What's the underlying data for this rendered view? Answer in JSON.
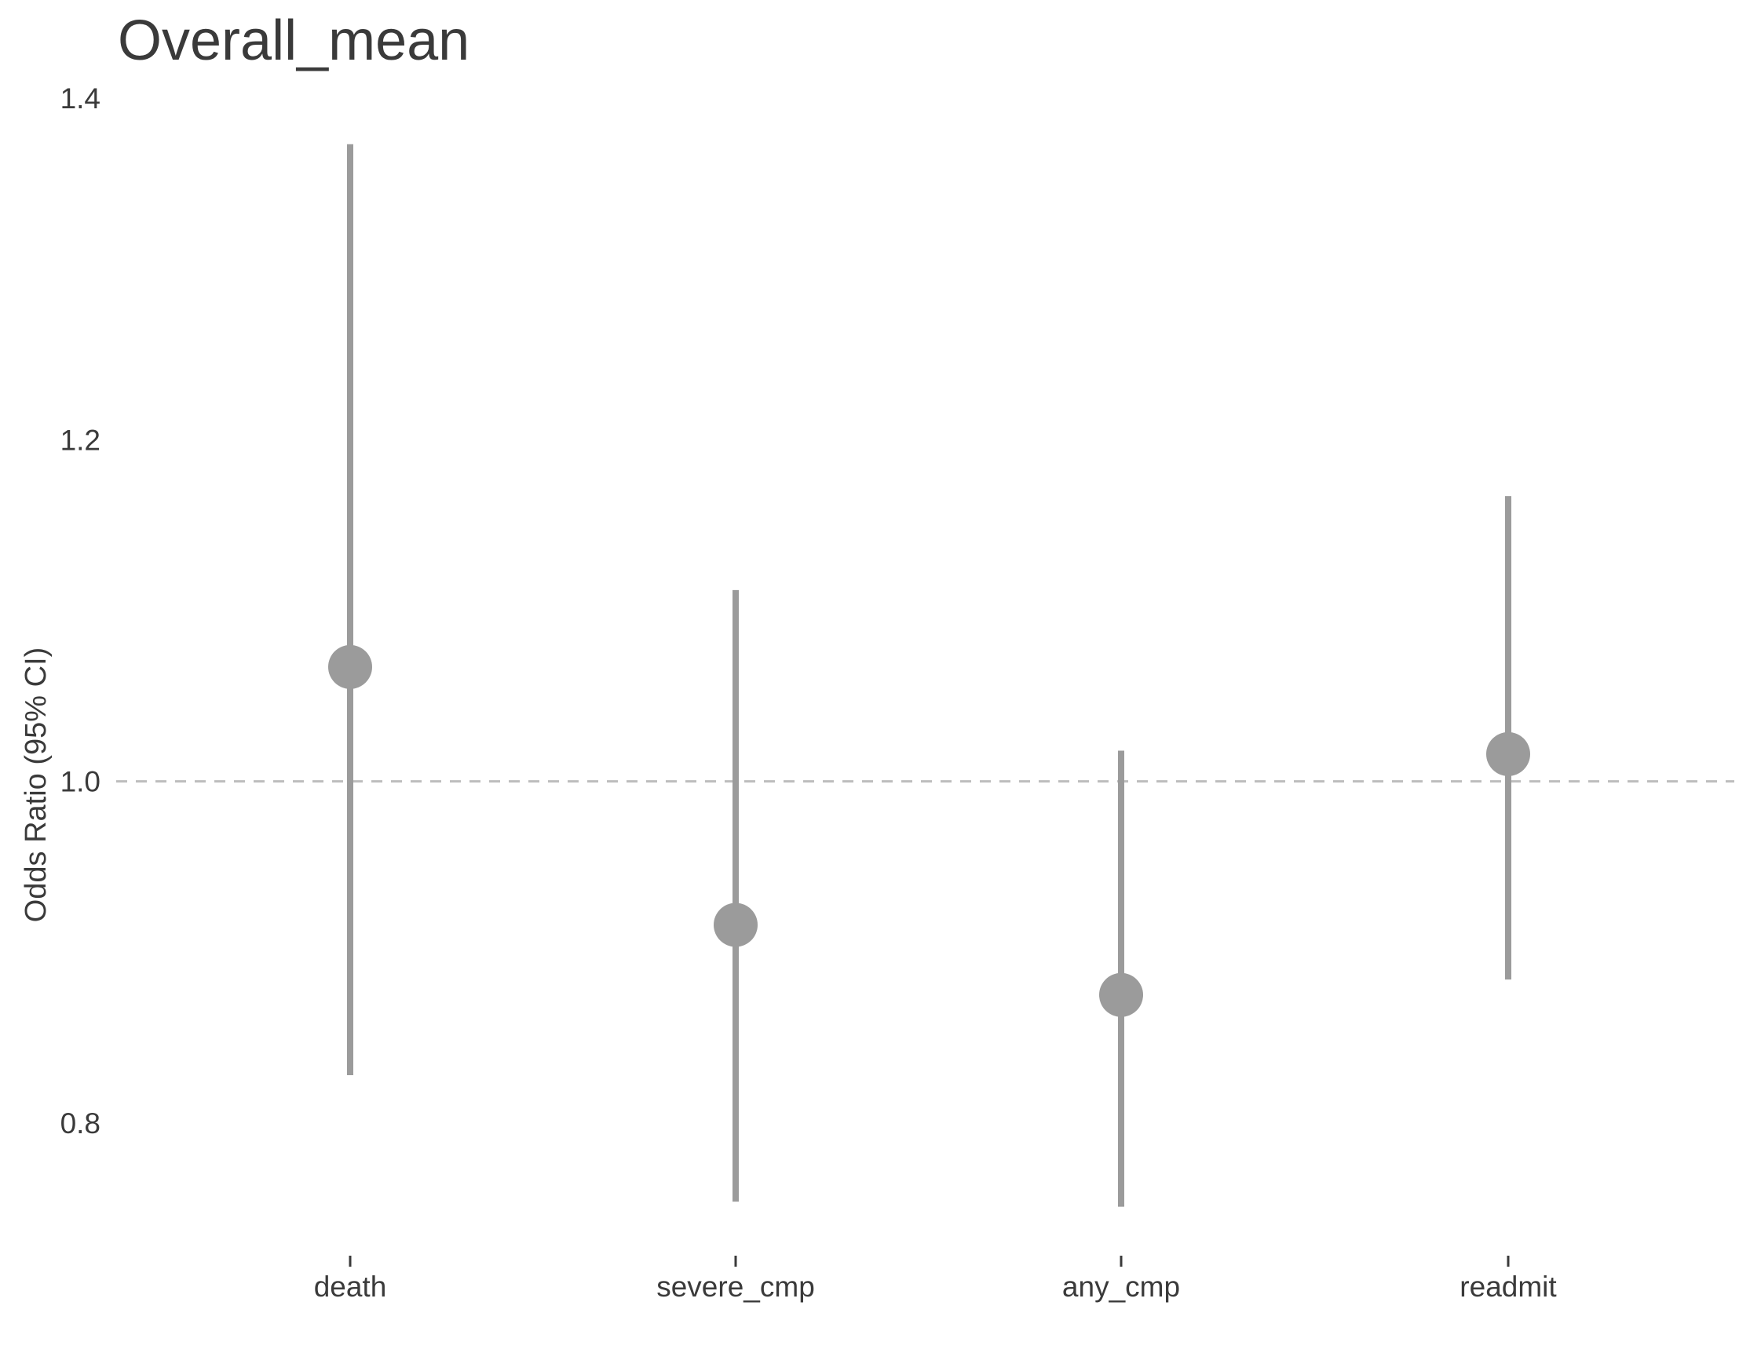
{
  "chart_data": {
    "type": "scatter",
    "subtype": "point-range",
    "title": "Overall_mean",
    "xlabel": "",
    "ylabel": "Odds Ratio (95% CI)",
    "categories": [
      "death",
      "severe_cmp",
      "any_cmp",
      "readmit"
    ],
    "series": [
      {
        "estimate": [
          1.067,
          0.916,
          0.875,
          1.016
        ],
        "lower": [
          0.828,
          0.754,
          0.751,
          0.884
        ],
        "upper": [
          1.373,
          1.112,
          1.018,
          1.167
        ]
      }
    ],
    "ylim": [
      0.72,
      1.42
    ],
    "yticks": [
      0.8,
      1.0,
      1.2,
      1.4
    ],
    "ytick_labels": [
      "0.8",
      "1.0",
      "1.2",
      "1.4"
    ],
    "reference_line": 1.0,
    "grid": false,
    "legend": "none",
    "colors": {
      "point": "#9b9b9b",
      "errorbar": "#9b9b9b",
      "reference_line": "#bdbdbd",
      "text": "#3a3a3a"
    }
  }
}
